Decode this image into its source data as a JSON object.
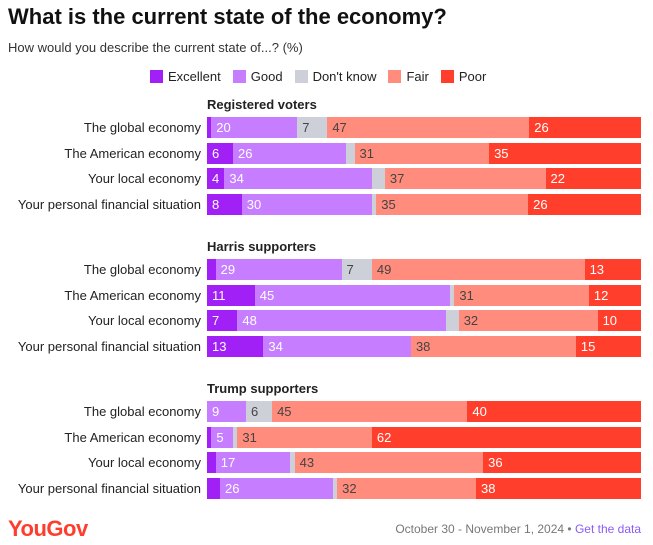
{
  "chart_data": {
    "type": "bar",
    "stacked": true,
    "orientation": "horizontal",
    "title": "What is the current state of the economy?",
    "subtitle": "How would you describe the current state of...? (%)",
    "legend": [
      "Excellent",
      "Good",
      "Don't know",
      "Fair",
      "Poor"
    ],
    "colors": [
      "#a020f5",
      "#c77dff",
      "#cdd0d9",
      "#ff8c7c",
      "#ff3f2c"
    ],
    "legend_placement": "top",
    "groups": [
      {
        "name": "Registered voters",
        "rows": [
          {
            "label": "The global economy",
            "values": [
              1,
              20,
              7,
              47,
              26
            ]
          },
          {
            "label": "The American economy",
            "values": [
              6,
              26,
              2,
              31,
              35
            ]
          },
          {
            "label": "Your local economy",
            "values": [
              4,
              34,
              3,
              37,
              22
            ]
          },
          {
            "label": "Your personal financial situation",
            "values": [
              8,
              30,
              1,
              35,
              26
            ]
          }
        ]
      },
      {
        "name": "Harris supporters",
        "rows": [
          {
            "label": "The global economy",
            "values": [
              2,
              29,
              7,
              49,
              13
            ]
          },
          {
            "label": "The American economy",
            "values": [
              11,
              45,
              1,
              31,
              12
            ]
          },
          {
            "label": "Your local economy",
            "values": [
              7,
              48,
              3,
              32,
              10
            ]
          },
          {
            "label": "Your personal financial situation",
            "values": [
              13,
              34,
              0,
              38,
              15
            ]
          }
        ]
      },
      {
        "name": "Trump supporters",
        "rows": [
          {
            "label": "The global economy",
            "values": [
              0,
              9,
              6,
              45,
              40
            ]
          },
          {
            "label": "The American economy",
            "values": [
              1,
              5,
              1,
              31,
              62
            ]
          },
          {
            "label": "Your local economy",
            "values": [
              2,
              17,
              1,
              43,
              36
            ]
          },
          {
            "label": "Your personal financial situation",
            "values": [
              3,
              26,
              1,
              32,
              38
            ]
          }
        ]
      }
    ]
  },
  "footer": {
    "logo": "YouGov",
    "date": "October 30 - November 1, 2024 •",
    "link": "Get the data"
  }
}
